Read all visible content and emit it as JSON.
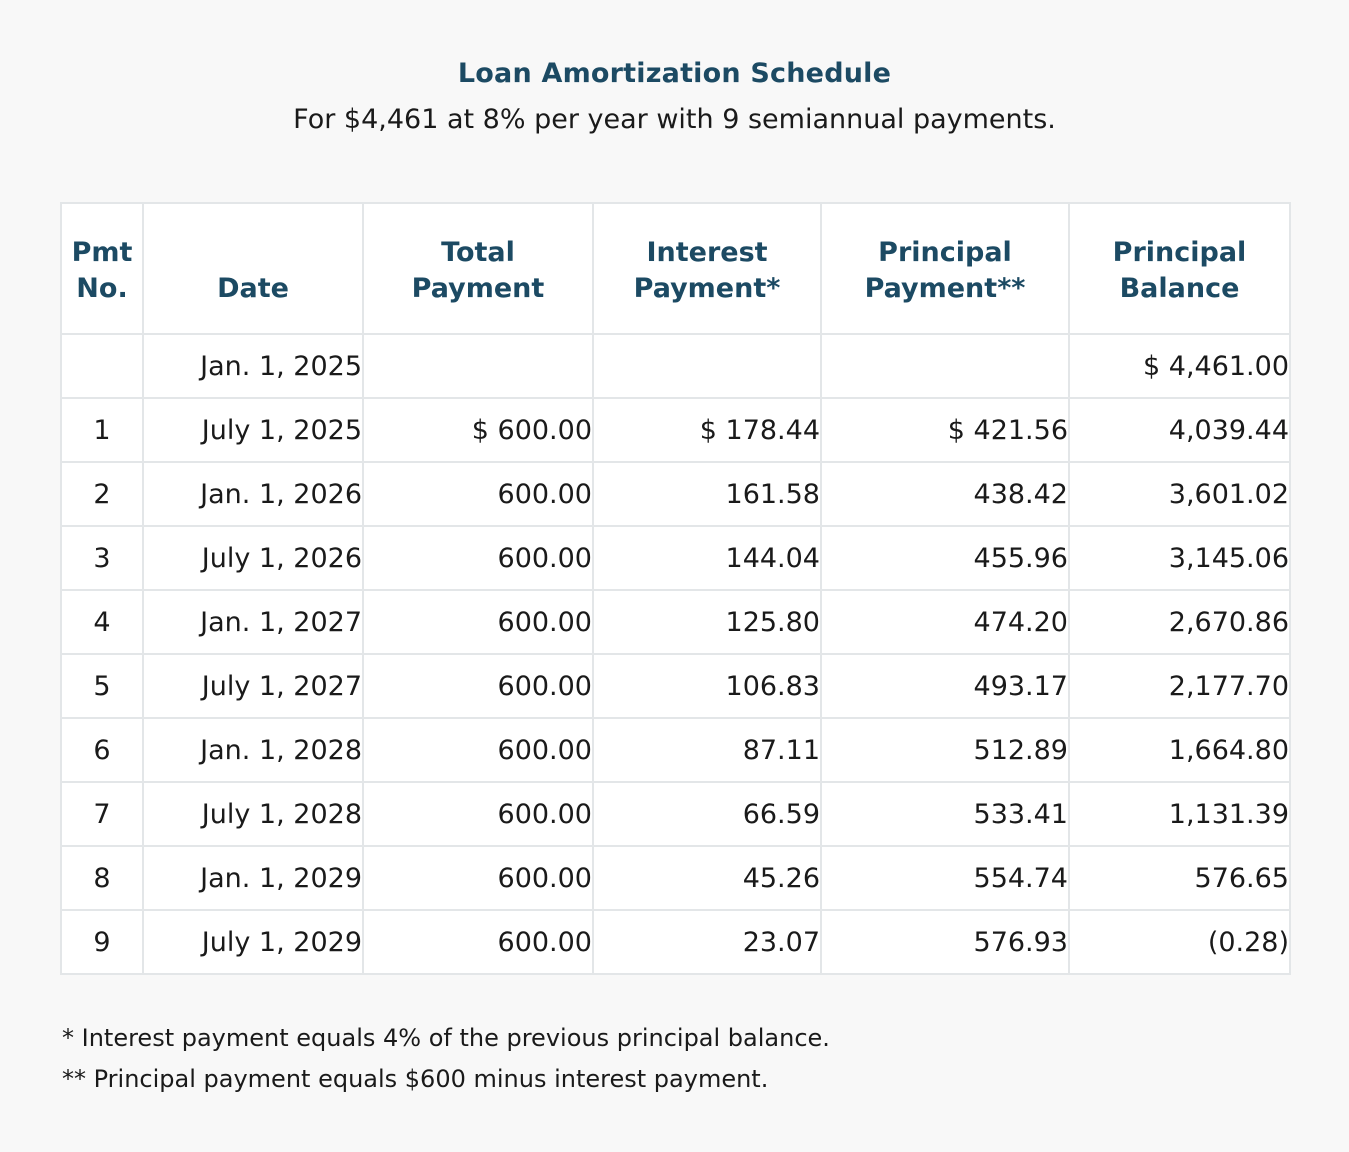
{
  "title": "Loan Amortization Schedule",
  "subtitle": "For $4,461 at 8% per year with 9 semiannual payments.",
  "columns": {
    "pmt_no": [
      "Pmt",
      "No."
    ],
    "date": [
      "Date"
    ],
    "total_payment": [
      "Total",
      "Payment"
    ],
    "interest_payment": [
      "Interest",
      "Payment*"
    ],
    "principal_payment": [
      "Principal",
      "Payment**"
    ],
    "principal_balance": [
      "Principal",
      "Balance"
    ]
  },
  "rows": [
    {
      "no": "",
      "date": "Jan. 1, 2025",
      "total": "",
      "interest": "",
      "principal": "",
      "balance": "$ 4,461.00"
    },
    {
      "no": "1",
      "date": "July 1, 2025",
      "total": "$ 600.00",
      "interest": "$ 178.44",
      "principal": "$ 421.56",
      "balance": "4,039.44"
    },
    {
      "no": "2",
      "date": "Jan. 1, 2026",
      "total": "600.00",
      "interest": "161.58",
      "principal": "438.42",
      "balance": "3,601.02"
    },
    {
      "no": "3",
      "date": "July 1, 2026",
      "total": "600.00",
      "interest": "144.04",
      "principal": "455.96",
      "balance": "3,145.06"
    },
    {
      "no": "4",
      "date": "Jan. 1, 2027",
      "total": "600.00",
      "interest": "125.80",
      "principal": "474.20",
      "balance": "2,670.86"
    },
    {
      "no": "5",
      "date": "July 1, 2027",
      "total": "600.00",
      "interest": "106.83",
      "principal": "493.17",
      "balance": "2,177.70"
    },
    {
      "no": "6",
      "date": "Jan. 1, 2028",
      "total": "600.00",
      "interest": "87.11",
      "principal": "512.89",
      "balance": "1,664.80"
    },
    {
      "no": "7",
      "date": "July 1, 2028",
      "total": "600.00",
      "interest": "66.59",
      "principal": "533.41",
      "balance": "1,131.39"
    },
    {
      "no": "8",
      "date": "Jan. 1, 2029",
      "total": "600.00",
      "interest": "45.26",
      "principal": "554.74",
      "balance": "576.65"
    },
    {
      "no": "9",
      "date": "July 1, 2029",
      "total": "600.00",
      "interest": "23.07",
      "principal": "576.93",
      "balance": "(0.28)"
    }
  ],
  "footnotes": [
    "* Interest payment equals 4% of the previous principal balance.",
    "** Principal payment equals $600 minus interest payment."
  ],
  "colors": {
    "heading": "#1c4a63",
    "text": "#1a1a1a",
    "border": "#e3e6e8",
    "background": "#f8f8f8"
  }
}
